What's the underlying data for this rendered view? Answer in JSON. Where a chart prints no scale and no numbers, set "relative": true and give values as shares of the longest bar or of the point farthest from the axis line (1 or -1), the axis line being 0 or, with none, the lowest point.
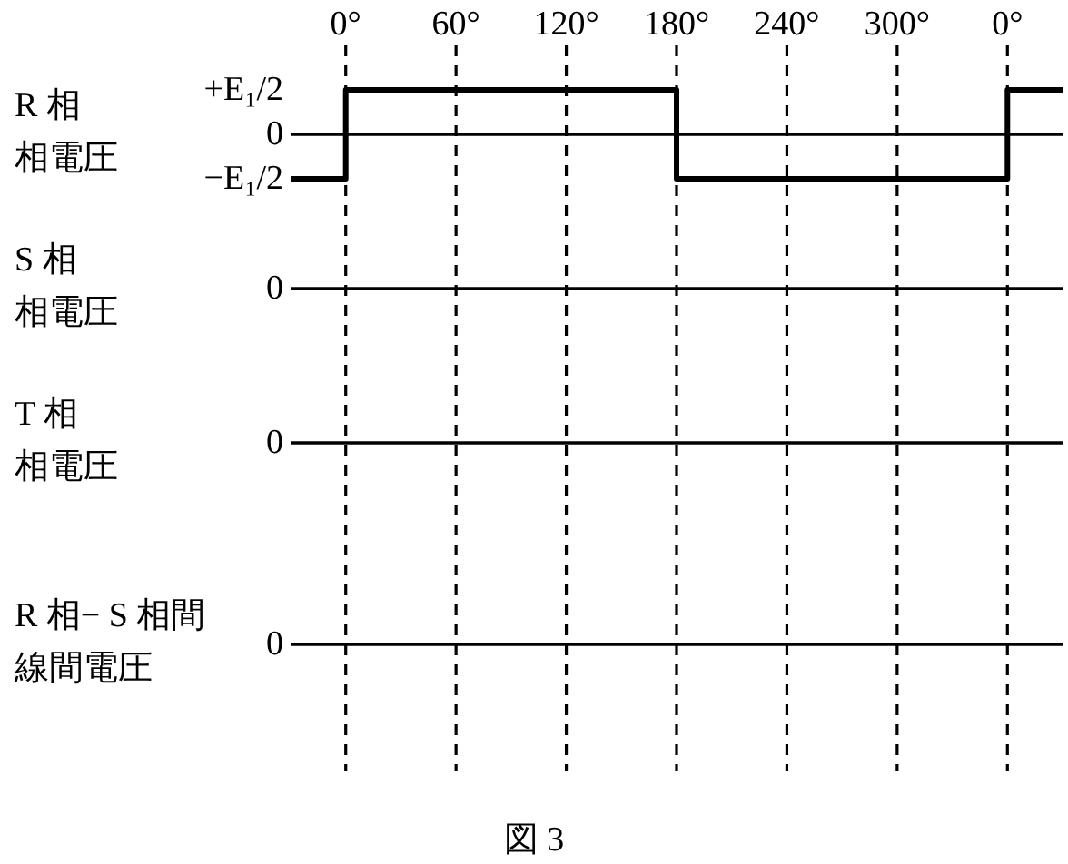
{
  "chart_data": [
    {
      "type": "step",
      "relative": true,
      "ylabel": "R 相相電圧",
      "categories": [
        null,
        "0°",
        null,
        "60°",
        null,
        "120°",
        null,
        "180°",
        null,
        "240°",
        null,
        "300°",
        null,
        "0°",
        null
      ],
      "series": [
        {
          "color": "#000000",
          "values": [
            -1,
            1,
            1,
            1,
            1,
            1,
            1,
            -1,
            -1,
            -1,
            -1,
            -1,
            -1,
            1,
            1
          ]
        }
      ],
      "tick_labels": "x",
      "grid": "x",
      "annotations": [
        "+E₁/2",
        "0",
        "−E₁/2"
      ]
    },
    {
      "type": "other",
      "ylabel": "S 相相電圧",
      "annotations": [
        "0"
      ]
    },
    {
      "type": "other",
      "ylabel": "T 相相電圧",
      "annotations": [
        "0"
      ]
    },
    {
      "type": "other",
      "ylabel": "R 相− S 相間線間電圧",
      "annotations": [
        "0"
      ]
    },
    {
      "type": "other",
      "annotations": [
        "図 3"
      ]
    }
  ]
}
